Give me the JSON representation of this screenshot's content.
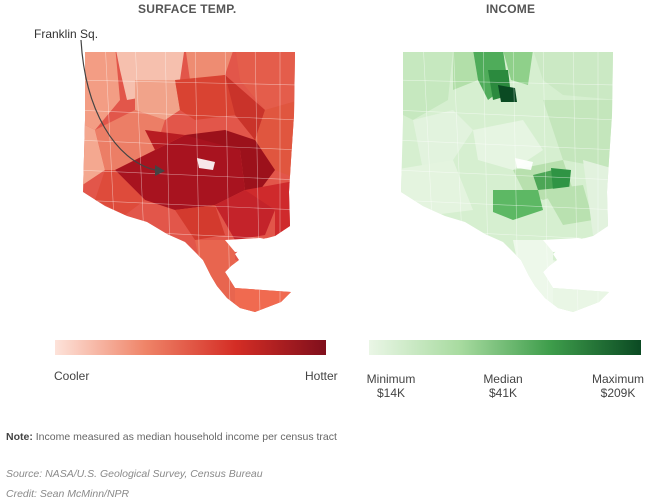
{
  "titles": {
    "temp": "SURFACE TEMP.",
    "income": "INCOME"
  },
  "annotation": {
    "label": "Franklin Sq."
  },
  "legend_temp": {
    "low": "Cooler",
    "high": "Hotter",
    "colors": [
      "#fde3da",
      "#ef8468",
      "#d42d25",
      "#800f1c"
    ]
  },
  "legend_income": {
    "min_label": "Minimum",
    "min_value": "$14K",
    "median_label": "Median",
    "median_value": "$41K",
    "max_label": "Maximum",
    "max_value": "$209K",
    "colors": [
      "#eaf6e6",
      "#a8dba0",
      "#3e9d4b",
      "#0b4a23"
    ]
  },
  "note": {
    "label": "Note:",
    "text": "Income measured as median household income per census tract"
  },
  "source": "Source: NASA/U.S. Geological Survey, Census Bureau",
  "credit": "Credit: Sean McMinn/NPR"
}
